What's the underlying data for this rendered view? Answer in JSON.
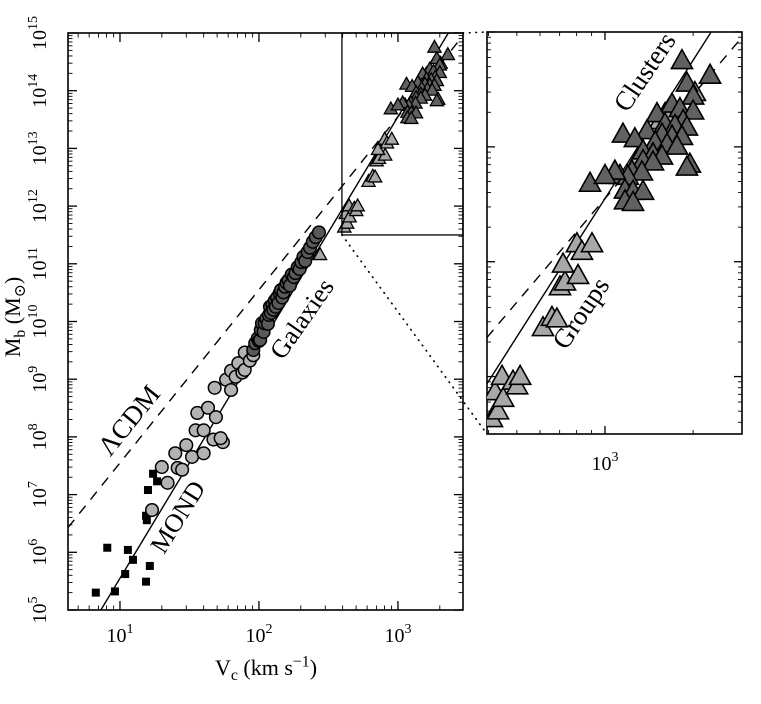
{
  "chart_data": {
    "type": "scatter",
    "x_scale": "log",
    "y_scale": "log",
    "style": {
      "background": "#ffffff",
      "frame_color": "#000000"
    },
    "main_axes": {
      "x_title_rich": [
        {
          "t": "V"
        },
        {
          "t": "c",
          "s": "sub"
        },
        {
          "t": " (km s"
        },
        {
          "t": "−1",
          "s": "sup"
        },
        {
          "t": ")"
        }
      ],
      "y_title_rich": [
        {
          "t": "M"
        },
        {
          "t": "b",
          "s": "sub"
        },
        {
          "t": " (M"
        },
        {
          "t": "⊙",
          "s": "sub"
        },
        {
          "t": ")"
        }
      ],
      "x_range_log": [
        0.626,
        3.468
      ],
      "y_range_log": [
        5,
        15
      ],
      "x_tick_exponents": [
        1,
        2,
        3
      ],
      "y_tick_exponents": [
        5,
        6,
        7,
        8,
        9,
        10,
        11,
        12,
        13,
        14,
        15
      ]
    },
    "panel_axes": {
      "x_range_log": [
        2.597,
        3.468
      ],
      "y_range_log": [
        11.5,
        15
      ],
      "x_tick_exponents": [
        3
      ],
      "y_tick_exponents": []
    },
    "lines": [
      {
        "name": "mond-line",
        "label": "MOND",
        "style": "solid",
        "slope": 4,
        "intercept_log10": 1.55
      },
      {
        "name": "lcdm-line",
        "label": "ΛCDM",
        "style": "dashed",
        "slope": 3,
        "intercept_log10": 4.55
      }
    ],
    "series": [
      {
        "name": "dwarf-galaxies",
        "marker": "square",
        "fill": "#000000",
        "stroke": "#000000",
        "points": [
          [
            6.7,
            200000.0
          ],
          [
            9.2,
            210000.0
          ],
          [
            15.4,
            310000.0
          ],
          [
            10.9,
            420000.0
          ],
          [
            16.4,
            580000.0
          ],
          [
            12.4,
            740000.0
          ],
          [
            11.4,
            1100000.0
          ],
          [
            8.1,
            1200000.0
          ],
          [
            15.6,
            3600000.0
          ],
          [
            15.4,
            4300000.0
          ],
          [
            15.9,
            12000000.0
          ],
          [
            18.5,
            17000000.0
          ],
          [
            17.3,
            23000000.0
          ]
        ]
      },
      {
        "name": "gas-rich-galaxies",
        "marker": "circle",
        "fill": "#b3b3b3",
        "stroke": "#000000",
        "points": [
          [
            17,
            5400000.0
          ],
          [
            20,
            30000000.0
          ],
          [
            22,
            16000000.0
          ],
          [
            26,
            29000000.0
          ],
          [
            28,
            27000000.0
          ],
          [
            25,
            52000000.0
          ],
          [
            30,
            72000000.0
          ],
          [
            33,
            45000000.0
          ],
          [
            40,
            52000000.0
          ],
          [
            47,
            90000000.0
          ],
          [
            55,
            81000000.0
          ],
          [
            53,
            95000000.0
          ],
          [
            35,
            130000000.0
          ],
          [
            36,
            260000000.0
          ],
          [
            40,
            130000000.0
          ],
          [
            43,
            320000000.0
          ],
          [
            49,
            220000000.0
          ],
          [
            48,
            710000000.0
          ],
          [
            58,
            980000000.0
          ],
          [
            63,
            650000000.0
          ],
          [
            63,
            1400000000.0
          ],
          [
            68,
            1100000000.0
          ],
          [
            71,
            1900000000.0
          ],
          [
            76,
            1300000000.0
          ],
          [
            79,
            1450000000.0
          ],
          [
            79,
            2900000000.0
          ],
          [
            86,
            2100000000.0
          ],
          [
            91,
            2600000000.0
          ]
        ]
      },
      {
        "name": "star-dominated-galaxies",
        "marker": "circle",
        "fill": "#595959",
        "stroke": "#000000",
        "points": [
          [
            91,
            3200000000.0
          ],
          [
            94,
            4200000000.0
          ],
          [
            98,
            5100000000.0
          ],
          [
            100,
            4600000000.0
          ],
          [
            102,
            4800000000.0
          ],
          [
            103,
            7100000000.0
          ],
          [
            105,
            9300000000.0
          ],
          [
            108,
            6600000000.0
          ],
          [
            110,
            9300000000.0
          ],
          [
            113,
            11200000000.0
          ],
          [
            116,
            9100000000.0
          ],
          [
            118,
            13000000000.0
          ],
          [
            120,
            18000000000.0
          ],
          [
            122,
            14000000000.0
          ],
          [
            125,
            19500000000.0
          ],
          [
            127,
            16000000000.0
          ],
          [
            130,
            23000000000.0
          ],
          [
            132,
            18000000000.0
          ],
          [
            135,
            26000000000.0
          ],
          [
            138,
            21000000000.0
          ],
          [
            141,
            31000000000.0
          ],
          [
            144,
            35000000000.0
          ],
          [
            147,
            26000000000.0
          ],
          [
            150,
            32000000000.0
          ],
          [
            154,
            40000000000.0
          ],
          [
            158,
            47000000000.0
          ],
          [
            163,
            52000000000.0
          ],
          [
            167,
            42000000000.0
          ],
          [
            172,
            65000000000.0
          ],
          [
            178,
            59000000000.0
          ],
          [
            183,
            69000000000.0
          ],
          [
            190,
            87000000000.0
          ],
          [
            196,
            81000000000.0
          ],
          [
            202,
            107000000000.0
          ],
          [
            209,
            132000000000.0
          ],
          [
            215,
            112000000000.0
          ],
          [
            224,
            160000000000.0
          ],
          [
            233,
            190000000000.0
          ],
          [
            244,
            240000000000.0
          ],
          [
            256,
            290000000000.0
          ],
          [
            270,
            350000000000.0
          ]
        ]
      },
      {
        "name": "groups",
        "marker": "triangle",
        "fill": "#a8a8a8",
        "stroke": "#000000",
        "points": [
          [
            275,
            140000000000.0
          ],
          [
            411,
            420000000000.0
          ],
          [
            421,
            720000000000.0
          ],
          [
            431,
            490000000000.0
          ],
          [
            445,
            980000000000.0
          ],
          [
            449,
            630000000000.0
          ],
          [
            485,
            890000000000.0
          ],
          [
            501,
            810000000000.0
          ],
          [
            513,
            980000000000.0
          ],
          [
            614,
            2600000000000.0
          ],
          [
            659,
            3200000000000.0
          ],
          [
            685,
            3100000000000.0
          ],
          [
            702,
            5900000000000.0
          ],
          [
            730,
            6500000000000.0
          ],
          [
            809,
            7400000000000.0
          ],
          [
            719,
            9300000000000.0
          ],
          [
            802,
            14000000000000.0
          ],
          [
            834,
            12000000000000.0
          ],
          [
            903,
            14000000000000.0
          ],
          [
            1315,
            81000000000000.0
          ],
          [
            1542,
            165000000000000.0
          ],
          [
            1603,
            190000000000000.0
          ],
          [
            2028,
            290000000000000.0
          ]
        ]
      },
      {
        "name": "clusters",
        "marker": "triangle",
        "fill": "#616161",
        "stroke": "#000000",
        "points": [
          [
            1832,
            550000000000000.0
          ],
          [
            2285,
            410000000000000.0
          ],
          [
            1905,
            350000000000000.0
          ],
          [
            1694,
            230000000000000.0
          ],
          [
            2000,
            270000000000000.0
          ],
          [
            1803,
            210000000000000.0
          ],
          [
            2000,
            200000000000000.0
          ],
          [
            1849,
            165000000000000.0
          ],
          [
            1505,
            190000000000000.0
          ],
          [
            1603,
            155000000000000.0
          ],
          [
            1734,
            150000000000000.0
          ],
          [
            1905,
            145000000000000.0
          ],
          [
            1392,
            135000000000000.0
          ],
          [
            1566,
            126000000000000.0
          ],
          [
            1694,
            121000000000000.0
          ],
          [
            1832,
            120000000000000.0
          ],
          [
            1483,
            107000000000000.0
          ],
          [
            1629,
            103000000000000.0
          ],
          [
            1762,
            99000000000000.0
          ],
          [
            1950,
            69000000000000.0
          ],
          [
            1152,
            126000000000000.0
          ],
          [
            1265,
            115000000000000.0
          ],
          [
            1349,
            90000000000000.0
          ],
          [
            1459,
            85000000000000.0
          ],
          [
            1566,
            81000000000000.0
          ],
          [
            1349,
            74000000000000.0
          ],
          [
            1459,
            72000000000000.0
          ],
          [
            1236,
            60000000000000.0
          ],
          [
            1337,
            59000000000000.0
          ],
          [
            1125,
            55000000000000.0
          ],
          [
            1197,
            54000000000000.0
          ],
          [
            889,
            47000000000000.0
          ],
          [
            1081,
            60000000000000.0
          ],
          [
            1000,
            55000000000000.0
          ],
          [
            1170,
            41000000000000.0
          ],
          [
            1247,
            40000000000000.0
          ],
          [
            1349,
            40000000000000.0
          ],
          [
            1170,
            33000000000000.0
          ],
          [
            1247,
            32000000000000.0
          ],
          [
            1905,
            65000000000000.0
          ]
        ]
      }
    ],
    "annotations": [
      {
        "name": "annotation-lcdm",
        "text": "ΛCDM",
        "panel": "main",
        "logV": 1.079,
        "logM": 8.26,
        "rot": -51,
        "size": 27
      },
      {
        "name": "annotation-mond",
        "text": "MOND",
        "panel": "main",
        "logV": 1.432,
        "logM": 6.59,
        "rot": -58,
        "size": 26
      },
      {
        "name": "annotation-galaxies",
        "text": "Galaxies",
        "panel": "main",
        "logV": 2.324,
        "logM": 10.02,
        "rot": -55,
        "size": 26
      },
      {
        "name": "annotation-clusters",
        "text": "Clusters",
        "panel": "panel",
        "logV": 3.143,
        "logM": 14.64,
        "rot": -56,
        "size": 27
      },
      {
        "name": "annotation-groups",
        "text": "Groups",
        "panel": "panel",
        "logV": 2.925,
        "logM": 12.54,
        "rot": -56,
        "size": 27
      }
    ]
  }
}
